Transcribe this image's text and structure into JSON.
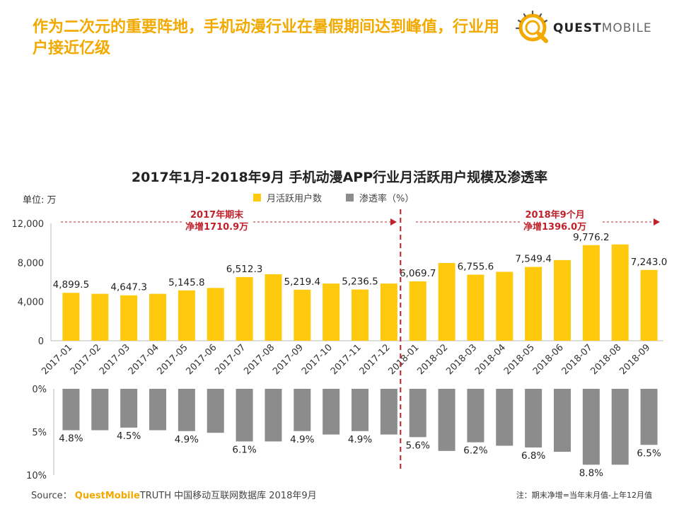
{
  "header": {
    "headline": "作为二次元的重要阵地，手机动漫行业在暑假期间达到峰值，行业用户接近亿级",
    "brand_main": "QUEST",
    "brand_sub": "MOBILE"
  },
  "chart_data": {
    "type": "bar",
    "title": "2017年1月-2018年9月 手机动漫APP行业月活跃用户规模及渗透率",
    "unit_label": "单位: 万",
    "categories": [
      "2017-01",
      "2017-02",
      "2017-03",
      "2017-04",
      "2017-05",
      "2017-06",
      "2017-07",
      "2017-08",
      "2017-09",
      "2017-10",
      "2017-11",
      "2017-12",
      "2018-01",
      "2018-02",
      "2018-03",
      "2018-04",
      "2018-05",
      "2018-06",
      "2018-07",
      "2018-08",
      "2018-09"
    ],
    "series": [
      {
        "name": "月活跃用户数",
        "color": "#ffc90e",
        "values": [
          4899.5,
          4800,
          4647.3,
          4800,
          5145.8,
          5400,
          6512.3,
          6800,
          5219.4,
          5850,
          5236.5,
          5850,
          6069.7,
          7950,
          6755.6,
          7050,
          7549.4,
          8250,
          9776.2,
          9850,
          7243.0
        ],
        "labels": [
          "4,899.5",
          "",
          "4,647.3",
          "",
          "5,145.8",
          "",
          "6,512.3",
          "",
          "5,219.4",
          "",
          "5,236.5",
          "",
          "6,069.7",
          "",
          "6,755.6",
          "",
          "7,549.4",
          "",
          "9,776.2",
          "",
          "7,243.0"
        ],
        "ylim": [
          0,
          12000
        ],
        "yticks": [
          "0",
          "4,000",
          "8,000",
          "12,000"
        ]
      },
      {
        "name": "渗透率（%）",
        "color": "#8c8c8c",
        "values": [
          4.8,
          4.8,
          4.5,
          4.8,
          4.9,
          5.1,
          6.1,
          6.1,
          4.9,
          5.3,
          4.9,
          5.3,
          5.6,
          7.2,
          6.2,
          6.6,
          6.8,
          7.3,
          8.8,
          8.8,
          6.5
        ],
        "labels": [
          "4.8%",
          "",
          "4.5%",
          "",
          "4.9%",
          "",
          "6.1%",
          "",
          "4.9%",
          "",
          "4.9%",
          "",
          "5.6%",
          "",
          "6.2%",
          "",
          "6.8%",
          "",
          "8.8%",
          "",
          "6.5%"
        ],
        "ylim": [
          0,
          10
        ],
        "yticks": [
          "0%",
          "5%",
          "10%"
        ]
      }
    ],
    "annotations": [
      {
        "line1": "2017年期末",
        "line2": "净增1710.9万"
      },
      {
        "line1": "2018年9个月",
        "line2": "净增1396.0万"
      }
    ]
  },
  "footer": {
    "source_prefix": "Source：",
    "source_brand": "QuestMobile",
    "source_rest": "TRUTH 中国移动互联网数据库 2018年9月",
    "note": "注：期末净增=当年末月值-上年12月值"
  }
}
